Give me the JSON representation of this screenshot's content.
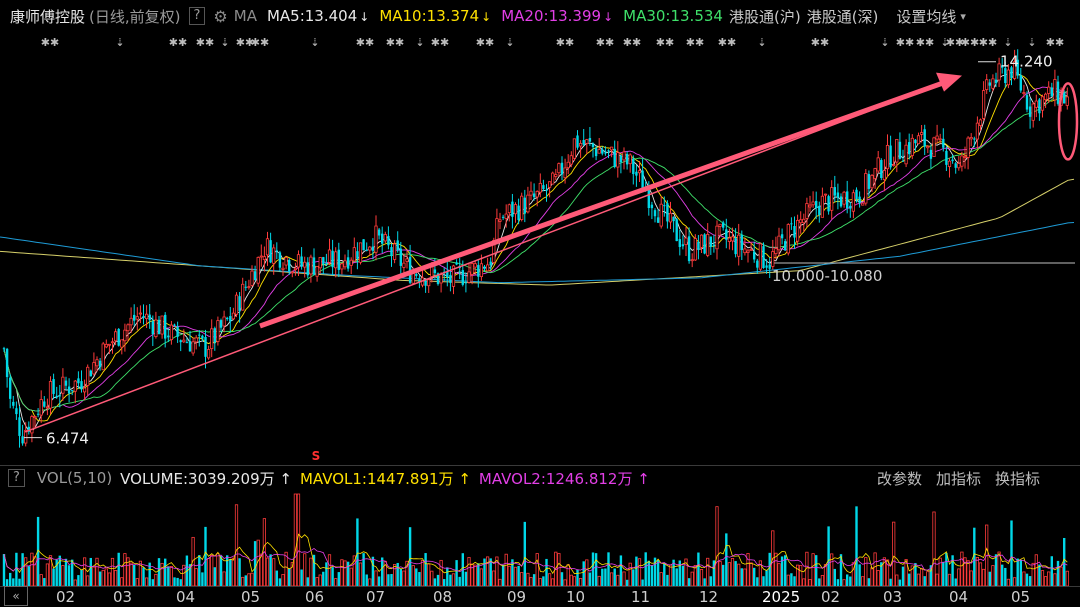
{
  "header": {
    "title": "康师傅控股",
    "mode": "(日线,前复权)",
    "help": "?",
    "gear_icon": "gear-icon",
    "ma_label": "MA",
    "ma5": "MA5:13.404",
    "ma10": "MA10:13.374",
    "ma20": "MA20:13.399",
    "ma30": "MA30:13.534",
    "link_sh": "港股通(沪)",
    "link_sz": "港股通(深)",
    "settings": "设置均线"
  },
  "colors": {
    "up": "#ff3b3b",
    "down": "#00d8e8",
    "ma5": "#e8e8e8",
    "ma10": "#ffe100",
    "ma20": "#e23fe6",
    "ma30": "#3fe06a",
    "ma60": "#1e9bd6",
    "ma120": "#d6d06a",
    "trend_arrow": "#ff5a78",
    "circle": "#ff5a78"
  },
  "annotations": {
    "high_label": "14.240",
    "low_label": "6.474",
    "support_label": "10.000-10.080",
    "signal_marker": "S"
  },
  "volume": {
    "help": "?",
    "label": "VOL(5,10)",
    "volume": "VOLUME:3039.209万",
    "mavol1": "MAVOL1:1447.891万",
    "mavol2": "MAVOL2:1246.812万",
    "btn_params": "改参数",
    "btn_add": "加指标",
    "btn_switch": "换指标"
  },
  "x_axis": {
    "nav": "«",
    "labels": [
      "02",
      "03",
      "04",
      "05",
      "06",
      "07",
      "08",
      "09",
      "10",
      "11",
      "12",
      "2025",
      "02",
      "03",
      "04",
      "05"
    ]
  },
  "chart_data": {
    "type": "candlestick",
    "title": "康师傅控股 (日线,前复权)",
    "series_ma": [
      {
        "name": "MA5",
        "last": 13.404
      },
      {
        "name": "MA10",
        "last": 13.374
      },
      {
        "name": "MA20",
        "last": 13.399
      },
      {
        "name": "MA30",
        "last": 13.534
      }
    ],
    "high": 14.24,
    "low": 6.474,
    "support_range": [
      10.0,
      10.08
    ],
    "months": [
      "02",
      "03",
      "04",
      "05",
      "06",
      "07",
      "08",
      "09",
      "10",
      "11",
      "12",
      "2025",
      "02",
      "03",
      "04",
      "05"
    ],
    "price_path": [
      [
        0,
        9.0
      ],
      [
        10,
        7.2
      ],
      [
        22,
        6.5
      ],
      [
        45,
        7.3
      ],
      [
        80,
        7.6
      ],
      [
        110,
        8.4
      ],
      [
        140,
        9.0
      ],
      [
        170,
        8.6
      ],
      [
        205,
        8.3
      ],
      [
        230,
        8.9
      ],
      [
        265,
        10.4
      ],
      [
        300,
        10.0
      ],
      [
        340,
        10.1
      ],
      [
        375,
        10.6
      ],
      [
        410,
        9.9
      ],
      [
        450,
        9.7
      ],
      [
        490,
        10.1
      ],
      [
        500,
        11.0
      ],
      [
        535,
        11.4
      ],
      [
        555,
        11.7
      ],
      [
        575,
        12.6
      ],
      [
        600,
        12.4
      ],
      [
        630,
        12.1
      ],
      [
        660,
        11.1
      ],
      [
        690,
        10.3
      ],
      [
        720,
        10.6
      ],
      [
        770,
        10.1
      ],
      [
        790,
        10.7
      ],
      [
        820,
        11.3
      ],
      [
        860,
        11.5
      ],
      [
        890,
        12.3
      ],
      [
        920,
        12.6
      ],
      [
        950,
        12.3
      ],
      [
        960,
        12.0
      ],
      [
        975,
        12.9
      ],
      [
        990,
        13.8
      ],
      [
        1012,
        14.1
      ],
      [
        1030,
        13.3
      ],
      [
        1055,
        13.6
      ],
      [
        1070,
        13.4
      ]
    ],
    "ma_long_a": [
      [
        0,
        10.3
      ],
      [
        200,
        10.0
      ],
      [
        400,
        9.7
      ],
      [
        550,
        9.6
      ],
      [
        800,
        9.9
      ],
      [
        1000,
        11.0
      ],
      [
        1070,
        11.8
      ]
    ],
    "ma_long_b": [
      [
        0,
        10.6
      ],
      [
        200,
        10.0
      ],
      [
        350,
        9.8
      ],
      [
        500,
        9.65
      ],
      [
        700,
        9.75
      ],
      [
        900,
        10.2
      ],
      [
        1070,
        10.9
      ]
    ],
    "vol_label_series": [
      "VOLUME",
      "MAVOL1",
      "MAVOL2"
    ]
  }
}
